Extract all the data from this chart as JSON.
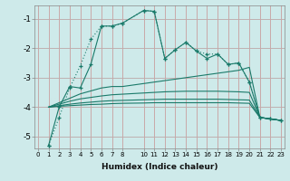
{
  "xlabel": "Humidex (Indice chaleur)",
  "background_color": "#ceeaea",
  "grid_color": "#b8d8d8",
  "line_color": "#1a7a6a",
  "ylim": [
    -5.4,
    -0.55
  ],
  "xlim": [
    -0.3,
    23.3
  ],
  "series": [
    {
      "x": [
        1,
        2,
        3,
        4,
        5,
        6,
        7,
        8,
        10,
        11,
        12,
        13,
        14,
        15,
        16,
        17,
        18,
        19,
        20,
        21,
        22,
        23
      ],
      "y": [
        -5.3,
        -4.35,
        -3.35,
        -2.6,
        -1.7,
        -1.25,
        -1.25,
        -1.15,
        -0.72,
        -0.75,
        -2.35,
        -2.05,
        -1.8,
        -2.1,
        -2.2,
        -2.2,
        -2.55,
        -2.5,
        -3.15,
        -4.35,
        -4.4,
        -4.45
      ],
      "marker": "+",
      "linestyle": "dotted"
    },
    {
      "x": [
        1,
        2,
        3,
        4,
        5,
        6,
        7,
        8,
        10,
        11,
        12,
        13,
        14,
        15,
        16,
        17,
        18,
        19,
        20,
        21,
        22,
        23
      ],
      "y": [
        -5.3,
        -4.0,
        -3.3,
        -3.35,
        -2.55,
        -1.25,
        -1.25,
        -1.15,
        -0.72,
        -0.75,
        -2.35,
        -2.05,
        -1.8,
        -2.1,
        -2.35,
        -2.2,
        -2.55,
        -2.5,
        -3.15,
        -4.35,
        -4.4,
        -4.45
      ],
      "marker": "+",
      "linestyle": "solid"
    },
    {
      "x": [
        1,
        2,
        3,
        4,
        5,
        6,
        7,
        8,
        10,
        11,
        12,
        13,
        14,
        15,
        16,
        17,
        18,
        19,
        20,
        21,
        22,
        23
      ],
      "y": [
        -4.0,
        -3.85,
        -3.7,
        -3.55,
        -3.45,
        -3.35,
        -3.3,
        -3.3,
        -3.2,
        -3.15,
        -3.1,
        -3.05,
        -3.0,
        -2.95,
        -2.9,
        -2.85,
        -2.8,
        -2.75,
        -2.65,
        -4.35,
        -4.4,
        -4.45
      ],
      "marker": null,
      "linestyle": "solid"
    },
    {
      "x": [
        1,
        2,
        3,
        4,
        5,
        6,
        7,
        8,
        10,
        11,
        12,
        13,
        14,
        15,
        16,
        17,
        18,
        19,
        20,
        21,
        22,
        23
      ],
      "y": [
        -4.0,
        -3.9,
        -3.8,
        -3.72,
        -3.67,
        -3.62,
        -3.58,
        -3.56,
        -3.52,
        -3.5,
        -3.48,
        -3.47,
        -3.46,
        -3.46,
        -3.46,
        -3.46,
        -3.47,
        -3.48,
        -3.5,
        -4.35,
        -4.4,
        -4.45
      ],
      "marker": null,
      "linestyle": "solid"
    },
    {
      "x": [
        1,
        2,
        3,
        4,
        5,
        6,
        7,
        8,
        10,
        11,
        12,
        13,
        14,
        15,
        16,
        17,
        18,
        19,
        20,
        21,
        22,
        23
      ],
      "y": [
        -4.0,
        -3.95,
        -3.9,
        -3.86,
        -3.83,
        -3.8,
        -3.78,
        -3.77,
        -3.75,
        -3.74,
        -3.73,
        -3.73,
        -3.73,
        -3.73,
        -3.73,
        -3.73,
        -3.74,
        -3.75,
        -3.76,
        -4.35,
        -4.4,
        -4.45
      ],
      "marker": null,
      "linestyle": "solid"
    },
    {
      "x": [
        1,
        2,
        3,
        4,
        5,
        6,
        7,
        8,
        10,
        11,
        12,
        13,
        14,
        15,
        16,
        17,
        18,
        19,
        20,
        21,
        22,
        23
      ],
      "y": [
        -4.0,
        -3.97,
        -3.95,
        -3.93,
        -3.91,
        -3.9,
        -3.88,
        -3.87,
        -3.86,
        -3.85,
        -3.85,
        -3.85,
        -3.85,
        -3.85,
        -3.85,
        -3.85,
        -3.85,
        -3.86,
        -3.87,
        -4.35,
        -4.4,
        -4.45
      ],
      "marker": null,
      "linestyle": "solid"
    }
  ],
  "x_ticks": [
    0,
    1,
    2,
    3,
    4,
    5,
    6,
    7,
    8,
    10,
    11,
    12,
    13,
    14,
    15,
    16,
    17,
    18,
    19,
    20,
    21,
    22,
    23
  ],
  "y_ticks": [
    -5,
    -4,
    -3,
    -2,
    -1
  ]
}
